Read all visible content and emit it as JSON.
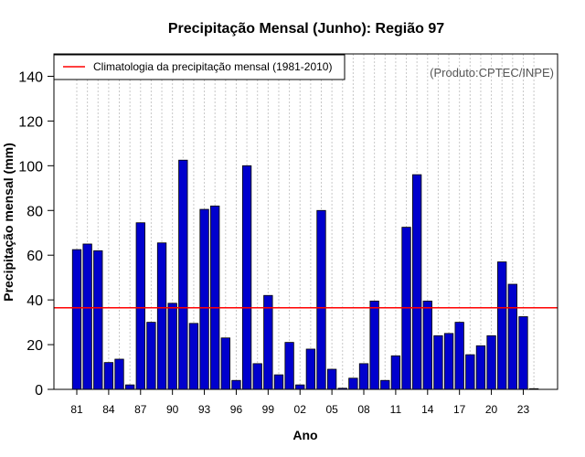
{
  "chart_data": {
    "type": "bar",
    "title": "Precipitação Mensal (Junho): Região 97",
    "xlabel": "Ano",
    "ylabel": "Precipitação mensal (mm)",
    "credit": "(Produto:CPTEC/INPE)",
    "legend": {
      "label": "Climatologia da precipitação mensal (1981-2010)",
      "position": "top-left"
    },
    "climatology": 36.5,
    "ylim": [
      0,
      150
    ],
    "yticks": [
      "0",
      "20",
      "40",
      "60",
      "80",
      "100",
      "120",
      "140"
    ],
    "xtick_labels": [
      "81",
      "84",
      "87",
      "90",
      "93",
      "96",
      "99",
      "02",
      "05",
      "08",
      "11",
      "14",
      "17",
      "20",
      "23"
    ],
    "categories": [
      "1981",
      "1982",
      "1983",
      "1984",
      "1985",
      "1986",
      "1987",
      "1988",
      "1989",
      "1990",
      "1991",
      "1992",
      "1993",
      "1994",
      "1995",
      "1996",
      "1997",
      "1998",
      "1999",
      "2000",
      "2001",
      "2002",
      "2003",
      "2004",
      "2005",
      "2006",
      "2007",
      "2008",
      "2009",
      "2010",
      "2011",
      "2012",
      "2013",
      "2014",
      "2015",
      "2016",
      "2017",
      "2018",
      "2019",
      "2020",
      "2021",
      "2022",
      "2023",
      "2024"
    ],
    "values": [
      62.5,
      65,
      62,
      12,
      13.5,
      2,
      74.5,
      30,
      65.5,
      38.5,
      102.5,
      29.5,
      80.5,
      82,
      23,
      4,
      100,
      11.5,
      42,
      6.5,
      21,
      2,
      18,
      80,
      9,
      0.5,
      5,
      11.5,
      39.5,
      4,
      15,
      72.5,
      96,
      39.5,
      24,
      25,
      30,
      15.5,
      19.5,
      24,
      57,
      47,
      32.5,
      0.3
    ],
    "colors": {
      "bar": "#0000cd",
      "line": "#ff0000",
      "grid": "#c8c8c8",
      "credit": "#555555"
    }
  }
}
